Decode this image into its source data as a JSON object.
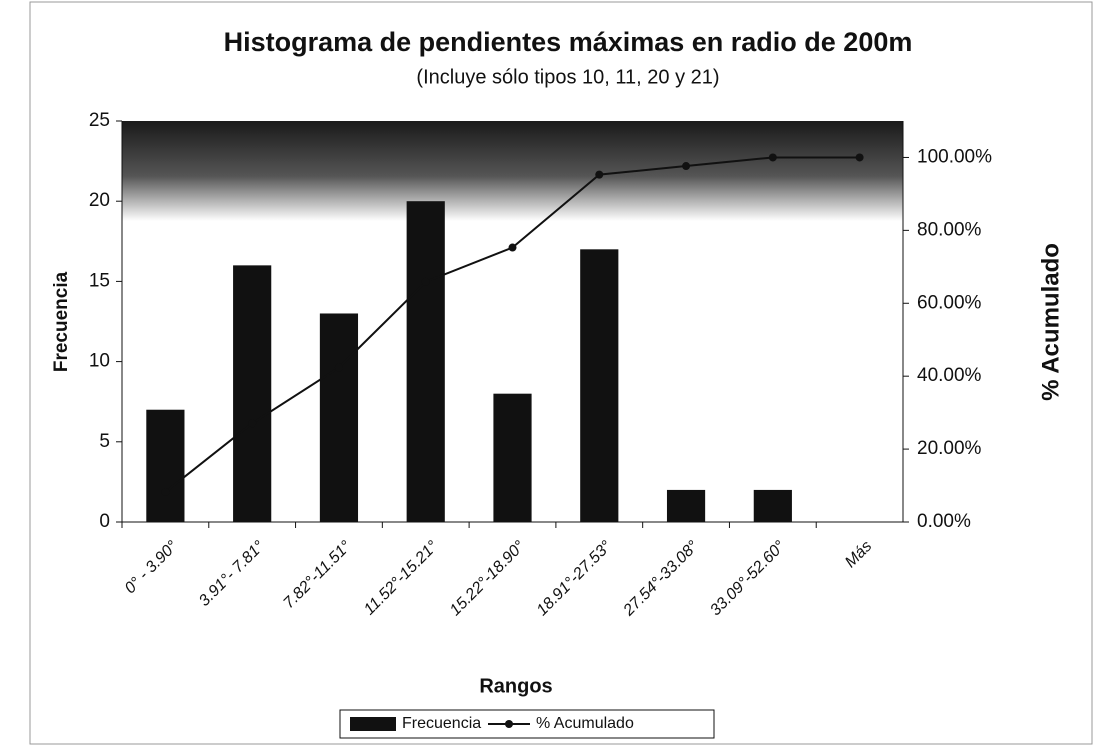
{
  "chart_data": {
    "type": "bar-line",
    "title": "Histograma de pendientes máximas en radio de 200m",
    "subtitle": "(Incluye sólo tipos 10, 11, 20 y 21)",
    "x_label": "Rangos",
    "y_label": "Frecuencia",
    "y2_label": "% Acumulado",
    "categories": [
      "0° - 3.90°",
      "3.91°- 7.81°",
      "7.82°-11.51°",
      "11.52°-15.21°",
      "15.22°-18.90°",
      "18.91°-27.53°",
      "27.54°-33.08°",
      "33.09°-52.60°",
      "Más"
    ],
    "series": [
      {
        "name": "Frecuencia",
        "color": "#111111",
        "type": "bar",
        "values": [
          7,
          16,
          13,
          20,
          8,
          17,
          2,
          2,
          0
        ]
      },
      {
        "name": "% Acumulado",
        "color": "#111111",
        "type": "line",
        "axis": "y2",
        "values": [
          8.24,
          27.06,
          42.35,
          65.88,
          75.29,
          95.29,
          97.65,
          100,
          100
        ]
      }
    ],
    "ylim": [
      0,
      25
    ],
    "yticks": [
      0,
      5,
      10,
      15,
      20,
      25
    ],
    "y2lim": [
      0,
      110
    ],
    "y2ticks": [
      {
        "value": 0,
        "label": "0.00%"
      },
      {
        "value": 20,
        "label": "20.00%"
      },
      {
        "value": 40,
        "label": "40.00%"
      },
      {
        "value": 60,
        "label": "60.00%"
      },
      {
        "value": 80,
        "label": "80.00%"
      },
      {
        "value": 100,
        "label": "100.00%"
      }
    ],
    "legend": "bottom"
  }
}
